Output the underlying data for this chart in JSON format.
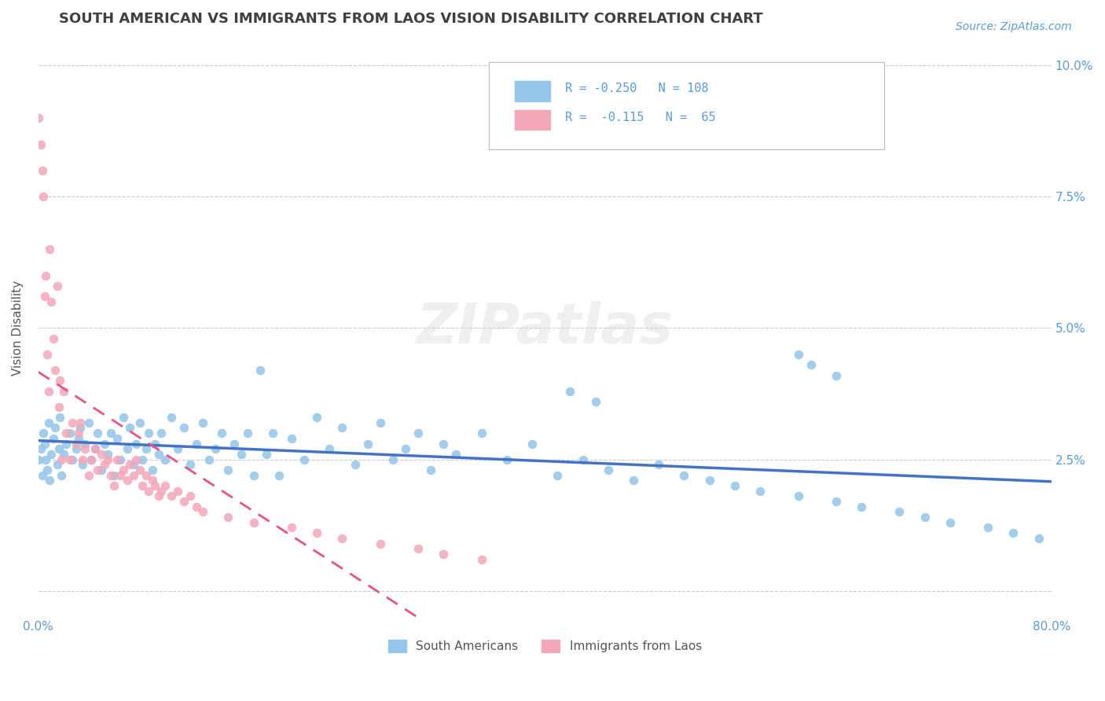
{
  "title": "SOUTH AMERICAN VS IMMIGRANTS FROM LAOS VISION DISABILITY CORRELATION CHART",
  "source": "Source: ZipAtlas.com",
  "xlabel": "",
  "ylabel": "Vision Disability",
  "xlim": [
    0.0,
    0.8
  ],
  "ylim": [
    -0.005,
    0.105
  ],
  "xticks": [
    0.0,
    0.1,
    0.2,
    0.3,
    0.4,
    0.5,
    0.6,
    0.7,
    0.8
  ],
  "xticklabels": [
    "0.0%",
    "",
    "",
    "",
    "",
    "",
    "",
    "",
    "80.0%"
  ],
  "yticks_right": [
    0.0,
    0.025,
    0.05,
    0.075,
    0.1
  ],
  "yticklabels_right": [
    "",
    "2.5%",
    "5.0%",
    "7.5%",
    "10.0%"
  ],
  "legend_r1": "R = -0.250",
  "legend_n1": "N = 108",
  "legend_r2": "R =  -0.115",
  "legend_n2": "N =  65",
  "blue_color": "#93C6E8",
  "pink_color": "#F4A7B9",
  "blue_line_color": "#4472C4",
  "pink_line_color": "#E75480",
  "title_color": "#404040",
  "axis_color": "#5B9BD5",
  "watermark": "ZIPatlas",
  "sa_x": [
    0.0,
    0.002,
    0.003,
    0.004,
    0.005,
    0.006,
    0.007,
    0.008,
    0.009,
    0.01,
    0.012,
    0.013,
    0.015,
    0.016,
    0.017,
    0.018,
    0.02,
    0.022,
    0.025,
    0.027,
    0.03,
    0.032,
    0.033,
    0.035,
    0.037,
    0.04,
    0.042,
    0.045,
    0.047,
    0.05,
    0.052,
    0.055,
    0.057,
    0.06,
    0.062,
    0.065,
    0.067,
    0.07,
    0.072,
    0.075,
    0.077,
    0.08,
    0.082,
    0.085,
    0.087,
    0.09,
    0.092,
    0.095,
    0.097,
    0.1,
    0.105,
    0.11,
    0.115,
    0.12,
    0.125,
    0.13,
    0.135,
    0.14,
    0.145,
    0.15,
    0.155,
    0.16,
    0.165,
    0.17,
    0.175,
    0.18,
    0.185,
    0.19,
    0.2,
    0.21,
    0.22,
    0.23,
    0.24,
    0.25,
    0.26,
    0.27,
    0.28,
    0.29,
    0.3,
    0.31,
    0.32,
    0.33,
    0.35,
    0.37,
    0.39,
    0.41,
    0.43,
    0.45,
    0.47,
    0.49,
    0.51,
    0.53,
    0.55,
    0.57,
    0.6,
    0.63,
    0.65,
    0.68,
    0.7,
    0.72,
    0.75,
    0.77,
    0.79,
    0.6,
    0.61,
    0.63,
    0.42,
    0.44
  ],
  "sa_y": [
    0.025,
    0.027,
    0.022,
    0.03,
    0.028,
    0.025,
    0.023,
    0.032,
    0.021,
    0.026,
    0.029,
    0.031,
    0.024,
    0.027,
    0.033,
    0.022,
    0.026,
    0.028,
    0.03,
    0.025,
    0.027,
    0.029,
    0.031,
    0.024,
    0.028,
    0.032,
    0.025,
    0.027,
    0.03,
    0.023,
    0.028,
    0.026,
    0.03,
    0.022,
    0.029,
    0.025,
    0.033,
    0.027,
    0.031,
    0.024,
    0.028,
    0.032,
    0.025,
    0.027,
    0.03,
    0.023,
    0.028,
    0.026,
    0.03,
    0.025,
    0.033,
    0.027,
    0.031,
    0.024,
    0.028,
    0.032,
    0.025,
    0.027,
    0.03,
    0.023,
    0.028,
    0.026,
    0.03,
    0.022,
    0.042,
    0.026,
    0.03,
    0.022,
    0.029,
    0.025,
    0.033,
    0.027,
    0.031,
    0.024,
    0.028,
    0.032,
    0.025,
    0.027,
    0.03,
    0.023,
    0.028,
    0.026,
    0.03,
    0.025,
    0.028,
    0.022,
    0.025,
    0.023,
    0.021,
    0.024,
    0.022,
    0.021,
    0.02,
    0.019,
    0.018,
    0.017,
    0.016,
    0.015,
    0.014,
    0.013,
    0.012,
    0.011,
    0.01,
    0.045,
    0.043,
    0.041,
    0.038,
    0.036
  ],
  "laos_x": [
    0.0,
    0.002,
    0.003,
    0.004,
    0.005,
    0.006,
    0.007,
    0.008,
    0.009,
    0.01,
    0.012,
    0.013,
    0.015,
    0.016,
    0.017,
    0.018,
    0.02,
    0.022,
    0.025,
    0.027,
    0.03,
    0.032,
    0.033,
    0.035,
    0.037,
    0.04,
    0.042,
    0.045,
    0.047,
    0.05,
    0.052,
    0.055,
    0.057,
    0.06,
    0.062,
    0.065,
    0.067,
    0.07,
    0.072,
    0.075,
    0.077,
    0.08,
    0.082,
    0.085,
    0.087,
    0.09,
    0.092,
    0.095,
    0.097,
    0.1,
    0.105,
    0.11,
    0.115,
    0.12,
    0.125,
    0.13,
    0.15,
    0.17,
    0.2,
    0.22,
    0.24,
    0.27,
    0.3,
    0.32,
    0.35
  ],
  "laos_y": [
    0.09,
    0.085,
    0.08,
    0.075,
    0.056,
    0.06,
    0.045,
    0.038,
    0.065,
    0.055,
    0.048,
    0.042,
    0.058,
    0.035,
    0.04,
    0.025,
    0.038,
    0.03,
    0.025,
    0.032,
    0.028,
    0.03,
    0.032,
    0.025,
    0.027,
    0.022,
    0.025,
    0.027,
    0.023,
    0.026,
    0.024,
    0.025,
    0.022,
    0.02,
    0.025,
    0.022,
    0.023,
    0.021,
    0.024,
    0.022,
    0.025,
    0.023,
    0.02,
    0.022,
    0.019,
    0.021,
    0.02,
    0.018,
    0.019,
    0.02,
    0.018,
    0.019,
    0.017,
    0.018,
    0.016,
    0.015,
    0.014,
    0.013,
    0.012,
    0.011,
    0.01,
    0.009,
    0.008,
    0.007,
    0.006
  ],
  "grid_color": "#CCCCCC"
}
